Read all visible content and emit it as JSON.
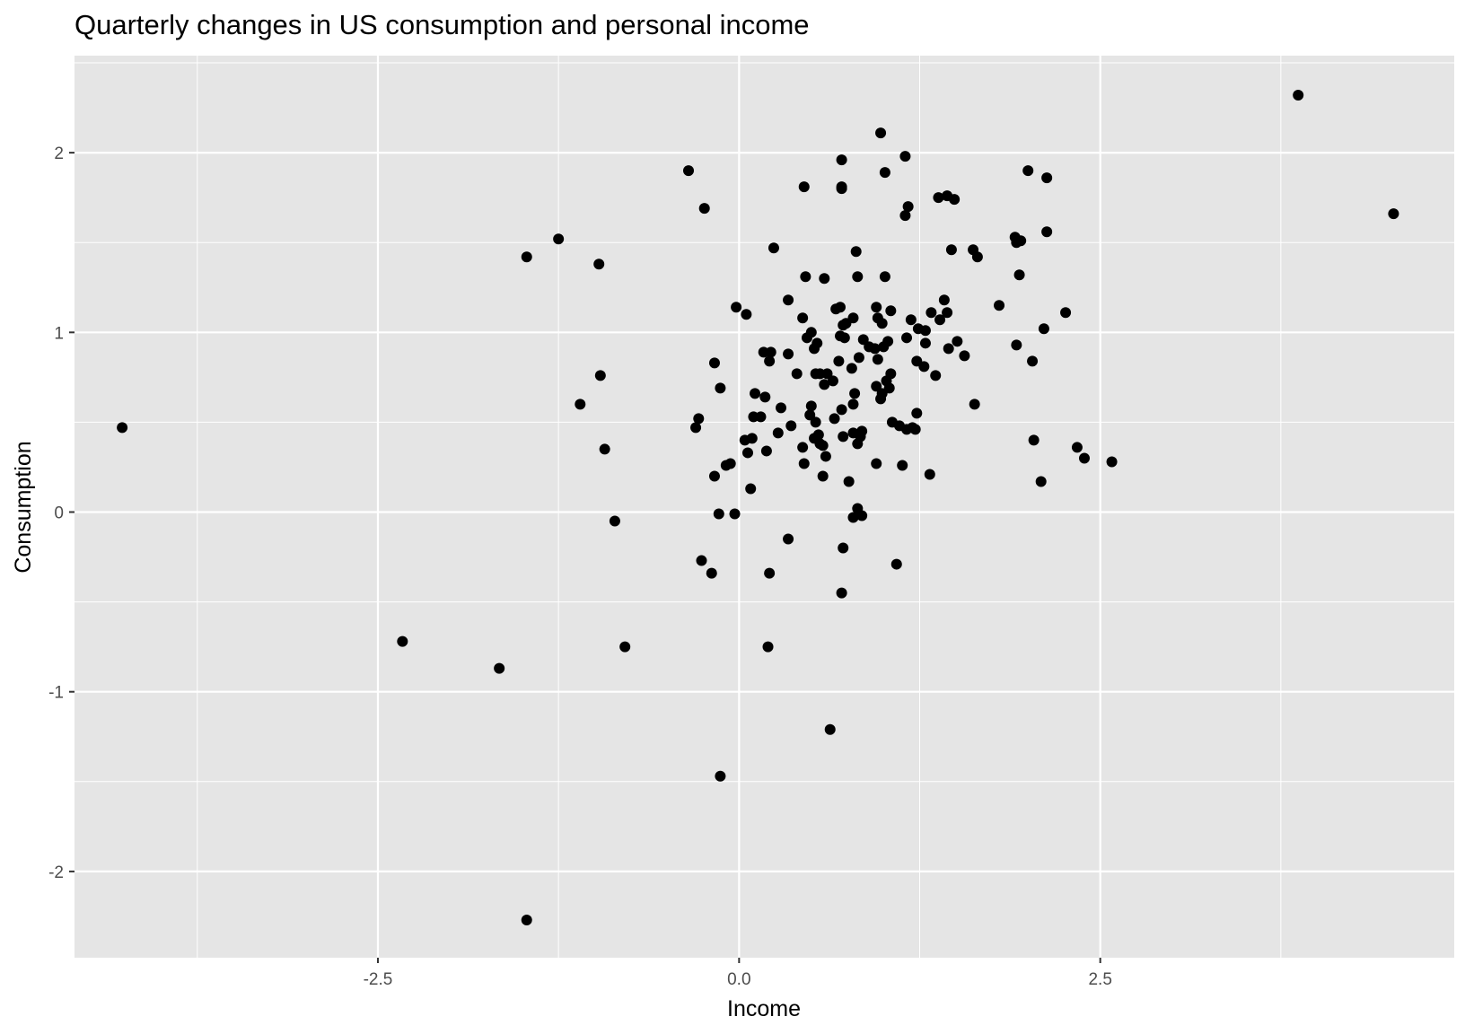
{
  "chart_data": {
    "type": "scatter",
    "title": "Quarterly changes in US consumption and personal income",
    "xlabel": "Income",
    "ylabel": "Consumption",
    "xlim": [
      -4.6,
      4.95
    ],
    "ylim": [
      -2.48,
      2.54
    ],
    "x_ticks": [
      -2.5,
      0.0,
      2.5
    ],
    "x_tick_labels": [
      "-2.5",
      "0.0",
      "2.5"
    ],
    "y_ticks": [
      -2,
      -1,
      0,
      1,
      2
    ],
    "y_tick_labels": [
      "-2",
      "-1",
      "0",
      "1",
      "2"
    ],
    "grid": true,
    "background": "#e5e5e5",
    "grid_color": "#ffffff",
    "point_color": "#000000",
    "points": [
      [
        -4.27,
        0.47
      ],
      [
        3.87,
        2.32
      ],
      [
        4.53,
        1.66
      ],
      [
        -1.47,
        -2.27
      ],
      [
        -0.13,
        -1.47
      ],
      [
        0.63,
        -1.21
      ],
      [
        -2.33,
        -0.72
      ],
      [
        -1.66,
        -0.87
      ],
      [
        -0.79,
        -0.75
      ],
      [
        0.2,
        -0.75
      ],
      [
        0.71,
        -0.45
      ],
      [
        -0.26,
        -0.27
      ],
      [
        -0.19,
        -0.34
      ],
      [
        0.21,
        -0.34
      ],
      [
        0.34,
        -0.15
      ],
      [
        0.72,
        -0.2
      ],
      [
        1.09,
        -0.29
      ],
      [
        -0.86,
        -0.05
      ],
      [
        -0.14,
        -0.01
      ],
      [
        -0.03,
        -0.01
      ],
      [
        0.79,
        -0.03
      ],
      [
        0.82,
        0.02
      ],
      [
        0.85,
        -0.02
      ],
      [
        -0.93,
        0.35
      ],
      [
        -0.3,
        0.47
      ],
      [
        -0.28,
        0.52
      ],
      [
        -0.17,
        0.2
      ],
      [
        -0.09,
        0.26
      ],
      [
        -0.06,
        0.27
      ],
      [
        0.04,
        0.4
      ],
      [
        0.06,
        0.33
      ],
      [
        0.09,
        0.41
      ],
      [
        0.08,
        0.13
      ],
      [
        0.1,
        0.53
      ],
      [
        0.15,
        0.53
      ],
      [
        0.18,
        0.64
      ],
      [
        0.19,
        0.34
      ],
      [
        0.27,
        0.44
      ],
      [
        0.29,
        0.58
      ],
      [
        0.36,
        0.48
      ],
      [
        0.44,
        0.36
      ],
      [
        0.45,
        0.27
      ],
      [
        0.49,
        0.54
      ],
      [
        0.5,
        0.59
      ],
      [
        0.52,
        0.41
      ],
      [
        0.53,
        0.5
      ],
      [
        0.55,
        0.43
      ],
      [
        0.56,
        0.38
      ],
      [
        0.58,
        0.37
      ],
      [
        0.58,
        0.2
      ],
      [
        0.6,
        0.31
      ],
      [
        0.66,
        0.52
      ],
      [
        0.71,
        0.57
      ],
      [
        0.72,
        0.42
      ],
      [
        0.76,
        0.17
      ],
      [
        0.79,
        0.44
      ],
      [
        0.82,
        0.38
      ],
      [
        0.84,
        0.42
      ],
      [
        0.85,
        0.45
      ],
      [
        0.95,
        0.27
      ],
      [
        1.13,
        0.26
      ],
      [
        1.32,
        0.21
      ],
      [
        1.16,
        0.46
      ],
      [
        1.2,
        0.47
      ],
      [
        1.22,
        0.46
      ],
      [
        1.11,
        0.48
      ],
      [
        1.06,
        0.5
      ],
      [
        1.23,
        0.55
      ],
      [
        1.63,
        0.6
      ],
      [
        2.04,
        0.4
      ],
      [
        2.09,
        0.17
      ],
      [
        2.34,
        0.36
      ],
      [
        2.39,
        0.3
      ],
      [
        2.58,
        0.28
      ],
      [
        -1.1,
        0.6
      ],
      [
        -0.96,
        0.76
      ],
      [
        -0.13,
        0.69
      ],
      [
        -0.17,
        0.83
      ],
      [
        0.11,
        0.66
      ],
      [
        0.17,
        0.89
      ],
      [
        0.21,
        0.84
      ],
      [
        0.22,
        0.89
      ],
      [
        0.34,
        0.88
      ],
      [
        0.4,
        0.77
      ],
      [
        0.47,
        0.97
      ],
      [
        0.53,
        0.77
      ],
      [
        0.56,
        0.77
      ],
      [
        0.59,
        0.71
      ],
      [
        0.61,
        0.77
      ],
      [
        0.65,
        0.73
      ],
      [
        0.52,
        0.91
      ],
      [
        0.69,
        0.84
      ],
      [
        0.73,
        0.97
      ],
      [
        0.78,
        0.8
      ],
      [
        0.79,
        0.6
      ],
      [
        0.8,
        0.66
      ],
      [
        0.83,
        0.86
      ],
      [
        0.86,
        0.96
      ],
      [
        0.9,
        0.92
      ],
      [
        0.94,
        0.91
      ],
      [
        0.95,
        0.7
      ],
      [
        0.96,
        0.85
      ],
      [
        0.98,
        0.63
      ],
      [
        0.99,
        0.66
      ],
      [
        1.0,
        0.92
      ],
      [
        1.02,
        0.73
      ],
      [
        1.03,
        0.95
      ],
      [
        1.04,
        0.69
      ],
      [
        1.05,
        0.77
      ],
      [
        1.16,
        0.97
      ],
      [
        1.23,
        0.84
      ],
      [
        1.28,
        0.81
      ],
      [
        1.29,
        0.94
      ],
      [
        1.36,
        0.76
      ],
      [
        1.45,
        0.91
      ],
      [
        1.51,
        0.95
      ],
      [
        1.56,
        0.87
      ],
      [
        1.92,
        0.93
      ],
      [
        2.03,
        0.84
      ],
      [
        -0.02,
        1.14
      ],
      [
        0.05,
        1.1
      ],
      [
        0.34,
        1.18
      ],
      [
        0.44,
        1.08
      ],
      [
        0.5,
        1.0
      ],
      [
        0.54,
        0.94
      ],
      [
        0.59,
        1.3
      ],
      [
        0.67,
        1.13
      ],
      [
        0.7,
        1.14
      ],
      [
        0.7,
        0.98
      ],
      [
        0.72,
        1.04
      ],
      [
        0.74,
        1.05
      ],
      [
        0.79,
        1.08
      ],
      [
        0.81,
        1.45
      ],
      [
        0.82,
        1.31
      ],
      [
        0.95,
        1.14
      ],
      [
        0.96,
        1.08
      ],
      [
        0.99,
        1.05
      ],
      [
        1.01,
        1.31
      ],
      [
        1.05,
        1.12
      ],
      [
        1.19,
        1.07
      ],
      [
        1.24,
        1.02
      ],
      [
        1.29,
        1.01
      ],
      [
        1.33,
        1.11
      ],
      [
        1.39,
        1.07
      ],
      [
        1.42,
        1.18
      ],
      [
        1.44,
        1.11
      ],
      [
        1.47,
        1.46
      ],
      [
        1.62,
        1.46
      ],
      [
        1.65,
        1.42
      ],
      [
        1.8,
        1.15
      ],
      [
        1.91,
        1.53
      ],
      [
        1.92,
        1.5
      ],
      [
        1.95,
        1.51
      ],
      [
        1.94,
        1.32
      ],
      [
        2.11,
        1.02
      ],
      [
        2.13,
        1.56
      ],
      [
        2.26,
        1.11
      ],
      [
        -1.47,
        1.42
      ],
      [
        -1.25,
        1.52
      ],
      [
        -0.97,
        1.38
      ],
      [
        -0.35,
        1.9
      ],
      [
        -0.24,
        1.69
      ],
      [
        0.24,
        1.47
      ],
      [
        0.45,
        1.81
      ],
      [
        0.46,
        1.31
      ],
      [
        0.71,
        1.96
      ],
      [
        0.71,
        1.8
      ],
      [
        0.71,
        1.81
      ],
      [
        0.98,
        2.11
      ],
      [
        1.01,
        1.89
      ],
      [
        1.15,
        1.98
      ],
      [
        1.15,
        1.65
      ],
      [
        1.17,
        1.7
      ],
      [
        1.38,
        1.75
      ],
      [
        1.44,
        1.76
      ],
      [
        1.49,
        1.74
      ],
      [
        2.0,
        1.9
      ],
      [
        2.13,
        1.86
      ]
    ]
  }
}
